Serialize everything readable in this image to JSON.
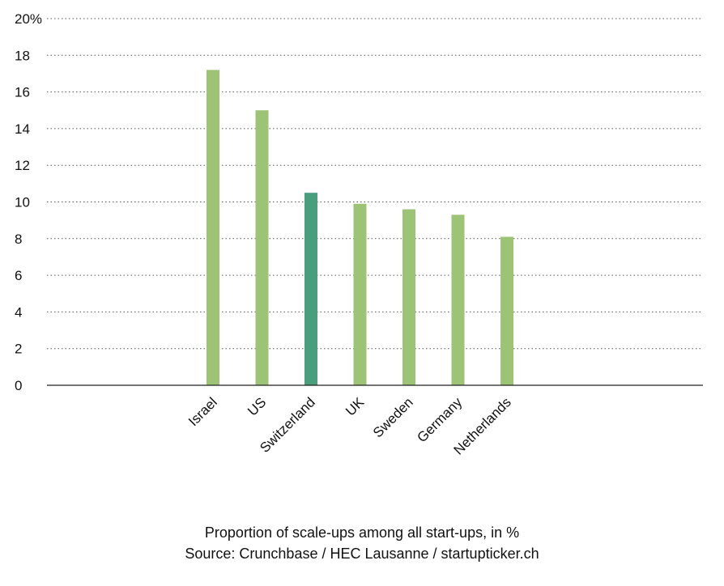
{
  "chart_data": {
    "type": "bar",
    "categories": [
      "Israel",
      "US",
      "Switzerland",
      "UK",
      "Sweden",
      "Germany",
      "Netherlands"
    ],
    "values": [
      17.2,
      15.0,
      10.5,
      9.9,
      9.6,
      9.3,
      8.1
    ],
    "highlight": "Switzerland",
    "ylim": [
      0,
      20
    ],
    "yticks": [
      0,
      2,
      4,
      6,
      8,
      10,
      12,
      14,
      16,
      18,
      20
    ],
    "ytick_labels": [
      "0",
      "2",
      "4",
      "6",
      "8",
      "10",
      "12",
      "14",
      "16",
      "18",
      "20%"
    ],
    "grid": true,
    "colors": {
      "bar": "#9dc377",
      "highlight": "#4a9e7d"
    },
    "title": "Proportion of scale-ups among all start-ups, in %",
    "source": "Source: Crunchbase / HEC Lausanne / startupticker.ch"
  }
}
